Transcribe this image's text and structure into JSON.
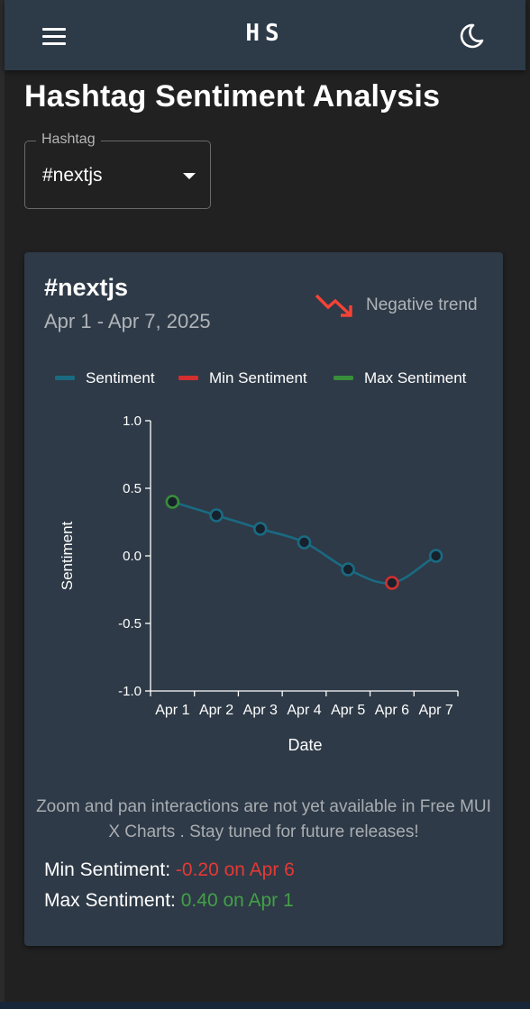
{
  "appbar": {
    "logo": "HS"
  },
  "page": {
    "title": "Hashtag Sentiment Analysis"
  },
  "select": {
    "label": "Hashtag",
    "value": "#nextjs"
  },
  "card": {
    "title": "#nextjs",
    "date_range": "Apr 1 - Apr 7, 2025",
    "trend_label": "Negative trend"
  },
  "notice": "Zoom and pan interactions are not yet available in Free MUI X Charts . Stay tuned for future releases!",
  "stats": {
    "min_label": "Min Sentiment:",
    "min_value": "-0.20 on Apr 6",
    "max_label": "Max Sentiment:",
    "max_value": "0.40 on Apr 1"
  },
  "colors": {
    "sentiment": "#1a6a82",
    "min": "#d32f2f",
    "max": "#388e3c",
    "trend": "#f44336",
    "min_text": "#e53935",
    "max_text": "#43a047"
  },
  "icons": {
    "menu": "menu-icon",
    "theme": "moon-icon",
    "trend": "trending-down-icon",
    "dropdown": "caret-down-icon"
  },
  "chart_data": {
    "type": "line",
    "categories": [
      "Apr 1",
      "Apr 2",
      "Apr 3",
      "Apr 4",
      "Apr 5",
      "Apr 6",
      "Apr 7"
    ],
    "series": [
      {
        "name": "Sentiment",
        "values": [
          0.4,
          0.3,
          0.2,
          0.1,
          -0.1,
          -0.2,
          0.0
        ]
      }
    ],
    "legend": [
      "Sentiment",
      "Min Sentiment",
      "Max Sentiment"
    ],
    "xlabel": "Date",
    "ylabel": "Sentiment",
    "ylim": [
      -1.0,
      1.0
    ],
    "yticks": [
      "1.0",
      "0.5",
      "0.0",
      "-0.5",
      "-1.0"
    ],
    "ytick_values": [
      1.0,
      0.5,
      0.0,
      -0.5,
      -1.0
    ],
    "min_point": {
      "x": "Apr 6",
      "y": -0.2
    },
    "max_point": {
      "x": "Apr 1",
      "y": 0.4
    },
    "grid": false,
    "legend_position": "top"
  }
}
